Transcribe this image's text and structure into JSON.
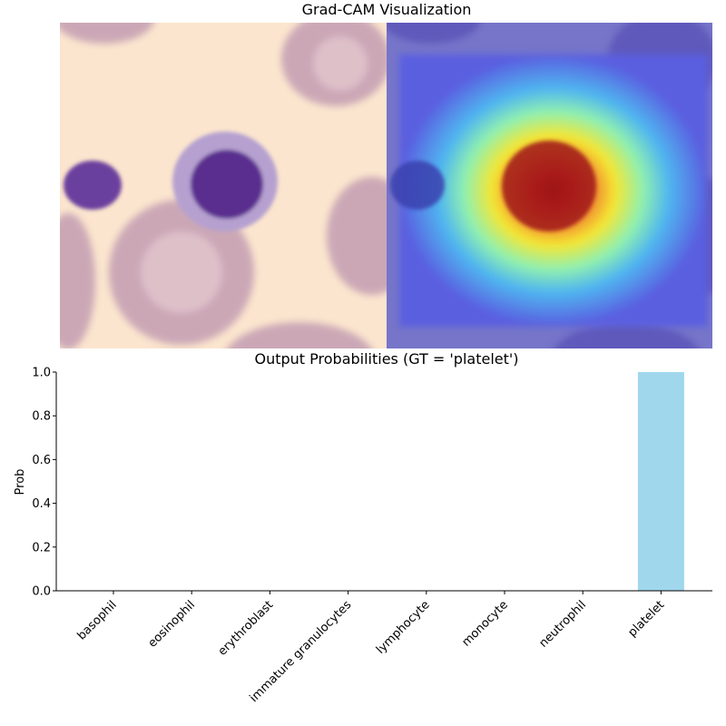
{
  "figure": {
    "cam_title": "Grad-CAM Visualization",
    "prob_title": "Output Probabilities (GT = 'platelet')"
  },
  "colors": {
    "bar": "#a0d7ed",
    "background_cell": "#fbe5ce",
    "rbc": "#c6a1b4",
    "nucleus": "#5a2e8f"
  },
  "chart_data": {
    "type": "bar",
    "title": "Output Probabilities (GT = 'platelet')",
    "xlabel": "",
    "ylabel": "Prob",
    "categories": [
      "basophil",
      "eosinophil",
      "erythroblast",
      "immature granulocytes",
      "lymphocyte",
      "monocyte",
      "neutrophil",
      "platelet"
    ],
    "values": [
      0.0,
      0.0,
      0.0,
      0.0,
      0.0,
      0.0,
      0.0,
      1.0
    ],
    "ylim": [
      0,
      1.0
    ],
    "yticks": [
      "0.0",
      "0.2",
      "0.4",
      "0.6",
      "0.8",
      "1.0"
    ],
    "grid": false
  }
}
